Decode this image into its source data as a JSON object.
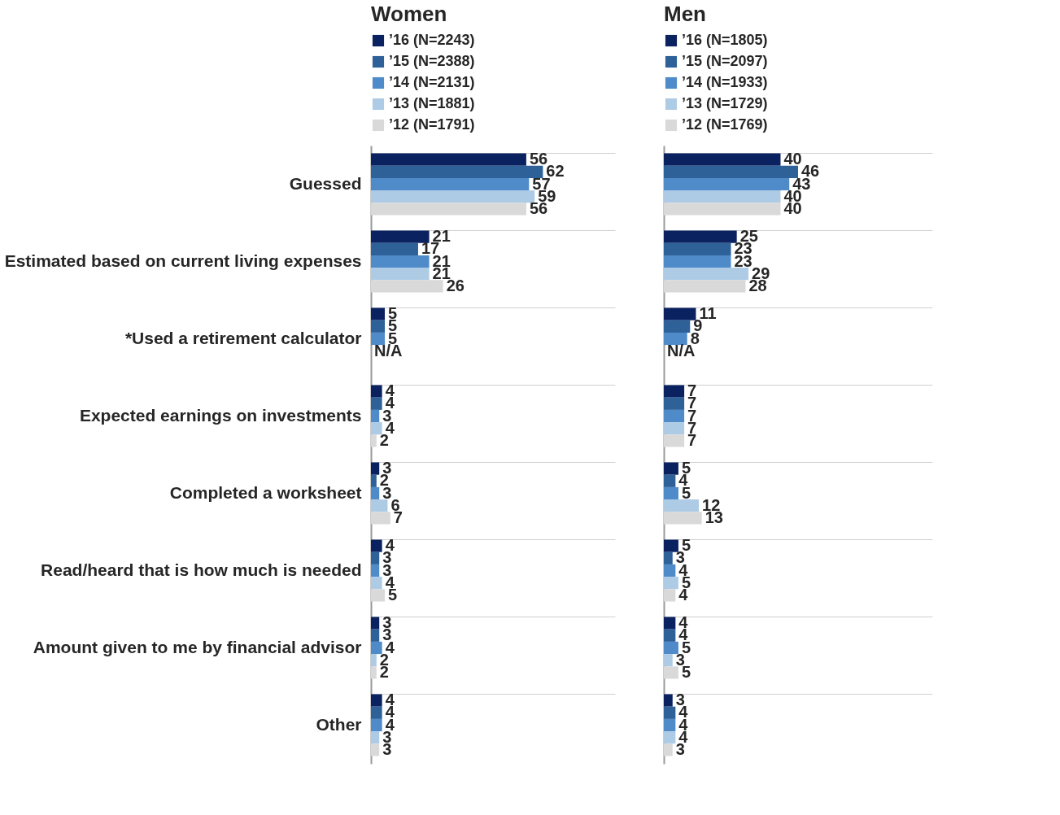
{
  "chart_data": [
    {
      "type": "bar",
      "orientation": "horizontal",
      "title": "Women",
      "tick_labels": "y",
      "grid": "y",
      "legend": "top",
      "xlim": [
        0,
        88
      ],
      "categories": [
        "Guessed",
        "Estimated based on current living expenses",
        "*Used a retirement calculator",
        "Expected earnings on investments",
        "Completed a worksheet",
        "Read/heard that is how much is needed",
        "Amount given to me by financial advisor",
        "Other"
      ],
      "series": [
        {
          "name": "’16 (N=2243)",
          "color": "#0b2260",
          "values": [
            56,
            21,
            5,
            4,
            3,
            4,
            3,
            4
          ],
          "value_labels": [
            "56",
            "21",
            "5",
            "4",
            "3",
            "4",
            "3",
            "4"
          ]
        },
        {
          "name": "’15 (N=2388)",
          "color": "#2e6198",
          "values": [
            62,
            17,
            5,
            4,
            2,
            3,
            3,
            4
          ],
          "value_labels": [
            "62",
            "17",
            "5",
            "4",
            "2",
            "3",
            "3",
            "4"
          ]
        },
        {
          "name": "’14 (N=2131)",
          "color": "#4f8bc9",
          "values": [
            57,
            21,
            5,
            3,
            3,
            3,
            4,
            4
          ],
          "value_labels": [
            "57",
            "21",
            "5",
            "3",
            "3",
            "3",
            "4",
            "4"
          ]
        },
        {
          "name": "’13 (N=1881)",
          "color": "#aecbe6",
          "values": [
            59,
            21,
            null,
            4,
            6,
            4,
            2,
            3
          ],
          "value_labels": [
            "59",
            "21",
            "N/A",
            "4",
            "6",
            "4",
            "2",
            "3"
          ]
        },
        {
          "name": "’12 (N=1791)",
          "color": "#d9d9d9",
          "values": [
            56,
            26,
            null,
            2,
            7,
            5,
            2,
            3
          ],
          "value_labels": [
            "56",
            "26",
            null,
            "2",
            "7",
            "5",
            "2",
            "3"
          ]
        }
      ]
    },
    {
      "type": "bar",
      "orientation": "horizontal",
      "title": "Men",
      "tick_labels": false,
      "grid": "y",
      "legend": "top",
      "xlim": [
        0,
        92
      ],
      "categories": [
        null,
        null,
        null,
        null,
        null,
        null,
        null,
        null
      ],
      "series": [
        {
          "name": "’16 (N=1805)",
          "color": "#0b2260",
          "values": [
            40,
            25,
            11,
            7,
            5,
            5,
            4,
            3
          ],
          "value_labels": [
            "40",
            "25",
            "11",
            "7",
            "5",
            "5",
            "4",
            "3"
          ]
        },
        {
          "name": "’15 (N=2097)",
          "color": "#2e6198",
          "values": [
            46,
            23,
            9,
            7,
            4,
            3,
            4,
            4
          ],
          "value_labels": [
            "46",
            "23",
            "9",
            "7",
            "4",
            "3",
            "4",
            "4"
          ]
        },
        {
          "name": "’14 (N=1933)",
          "color": "#4f8bc9",
          "values": [
            43,
            23,
            8,
            7,
            5,
            4,
            5,
            4
          ],
          "value_labels": [
            "43",
            "23",
            "8",
            "7",
            "5",
            "4",
            "5",
            "4"
          ]
        },
        {
          "name": "’13 (N=1729)",
          "color": "#aecbe6",
          "values": [
            40,
            29,
            null,
            7,
            12,
            5,
            3,
            4
          ],
          "value_labels": [
            "40",
            "29",
            "N/A",
            "7",
            "12",
            "5",
            "3",
            "4"
          ]
        },
        {
          "name": "’12 (N=1769)",
          "color": "#d9d9d9",
          "values": [
            40,
            28,
            null,
            7,
            13,
            4,
            5,
            3
          ],
          "value_labels": [
            "40",
            "28",
            null,
            "7",
            "13",
            "4",
            "5",
            "3"
          ]
        }
      ]
    }
  ]
}
